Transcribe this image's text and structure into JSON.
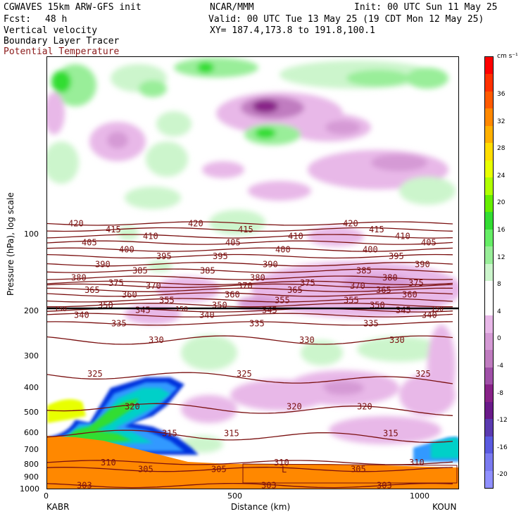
{
  "header": {
    "model": "CGWAVES 15km ARW-GFS init",
    "org": "NCAR/MMM",
    "init": "Init: 00 UTC Sun 11 May 25",
    "fcst_label": "Fcst:",
    "fcst_value": "48 h",
    "valid": "Valid: 00 UTC Tue 13 May 25 (19 CDT Mon 12 May 25)",
    "field1": "Vertical velocity",
    "field2": "Boundary Layer Tracer",
    "field3": "Potential Temperature",
    "xy": "XY= 187.4,173.8 to 191.8,100.1"
  },
  "colors": {
    "theta_line": "#7a1010",
    "field3_text": "#8b1a1a",
    "bl_orange": "#ff8800"
  },
  "chart_data": {
    "type": "heatmap",
    "title": "Vertical velocity cross-section",
    "xlabel": "Distance (km)",
    "ylabel": "Pressure (hPa), log scale",
    "x_start_label": "KABR",
    "x_end_label": "KOUN",
    "xlim": [
      0,
      1110
    ],
    "x_ticks": [
      0,
      500,
      1000
    ],
    "ylim": [
      1000,
      20
    ],
    "y_scale": "log",
    "y_ticks": [
      100,
      200,
      300,
      400,
      500,
      600,
      700,
      800,
      900,
      1000
    ],
    "colorbar": {
      "units": "cm s⁻¹",
      "ticks": [
        36,
        32,
        28,
        24,
        20,
        16,
        12,
        8,
        4,
        0,
        -4,
        -8,
        -12,
        -16,
        -20
      ],
      "colors": [
        "#ff0000",
        "#ff3000",
        "#ff5a00",
        "#ff8800",
        "#ffb000",
        "#ffdd00",
        "#e8ff00",
        "#b0ff00",
        "#66ee00",
        "#33dd33",
        "#66ee66",
        "#99ee99",
        "#ccf5cc",
        "#ffffff",
        "#ffffff",
        "#e8b8e8",
        "#d59ad5",
        "#c07cc0",
        "#a050a8",
        "#882288",
        "#6a1a8a",
        "#5a3ab0",
        "#5a5ae0",
        "#7a7af0",
        "#9090ff"
      ]
    },
    "theta_contours": [
      {
        "theta": 420,
        "p": 90
      },
      {
        "theta": 415,
        "p": 95
      },
      {
        "theta": 410,
        "p": 101
      },
      {
        "theta": 405,
        "p": 107
      },
      {
        "theta": 400,
        "p": 114
      },
      {
        "theta": 395,
        "p": 121
      },
      {
        "theta": 390,
        "p": 130
      },
      {
        "theta": 385,
        "p": 138
      },
      {
        "theta": 380,
        "p": 147
      },
      {
        "theta": 375,
        "p": 154
      },
      {
        "theta": 370,
        "p": 158
      },
      {
        "theta": 365,
        "p": 164
      },
      {
        "theta": 360,
        "p": 171
      },
      {
        "theta": 355,
        "p": 180
      },
      {
        "theta": 350,
        "p": 188
      },
      {
        "theta": 345,
        "p": 197
      },
      {
        "theta": 340,
        "p": 206
      },
      {
        "theta": 335,
        "p": 222
      },
      {
        "theta": 330,
        "p": 258
      },
      {
        "theta": 325,
        "p": 350
      },
      {
        "theta": 320,
        "p": 470
      },
      {
        "theta": 315,
        "p": 600
      },
      {
        "theta": 310,
        "p": 780
      },
      {
        "theta": 305,
        "p": 830
      },
      {
        "theta": 303,
        "p": 960
      }
    ],
    "tracer_label": "150",
    "low_label": "L"
  }
}
